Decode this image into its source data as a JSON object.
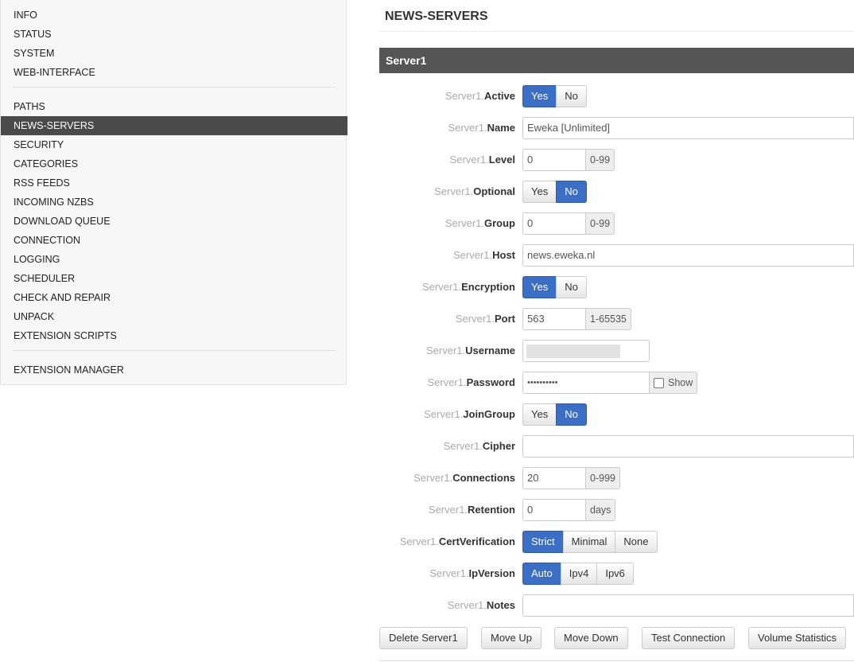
{
  "sidebar": {
    "groups": [
      [
        {
          "label": "INFO"
        },
        {
          "label": "STATUS"
        },
        {
          "label": "SYSTEM"
        },
        {
          "label": "WEB-INTERFACE"
        }
      ],
      [
        {
          "label": "PATHS"
        },
        {
          "label": "NEWS-SERVERS",
          "active": true
        },
        {
          "label": "SECURITY"
        },
        {
          "label": "CATEGORIES"
        },
        {
          "label": "RSS FEEDS"
        },
        {
          "label": "INCOMING NZBS"
        },
        {
          "label": "DOWNLOAD QUEUE"
        },
        {
          "label": "CONNECTION"
        },
        {
          "label": "LOGGING"
        },
        {
          "label": "SCHEDULER"
        },
        {
          "label": "CHECK AND REPAIR"
        },
        {
          "label": "UNPACK"
        },
        {
          "label": "EXTENSION SCRIPTS"
        }
      ],
      [
        {
          "label": "EXTENSION MANAGER"
        }
      ]
    ]
  },
  "main": {
    "title": "NEWS-SERVERS",
    "section": "Server1",
    "fields": [
      {
        "prefix": "Server1.",
        "name": "Active",
        "type": "switch",
        "options": [
          "Yes",
          "No"
        ],
        "selected": 0
      },
      {
        "prefix": "Server1.",
        "name": "Name",
        "type": "text",
        "value": "Eweka [Unlimited]"
      },
      {
        "prefix": "Server1.",
        "name": "Level",
        "type": "number",
        "value": "0",
        "addon": "0-99"
      },
      {
        "prefix": "Server1.",
        "name": "Optional",
        "type": "switch",
        "options": [
          "Yes",
          "No"
        ],
        "selected": 1
      },
      {
        "prefix": "Server1.",
        "name": "Group",
        "type": "number",
        "value": "0",
        "addon": "0-99"
      },
      {
        "prefix": "Server1.",
        "name": "Host",
        "type": "text",
        "value": "news.eweka.nl"
      },
      {
        "prefix": "Server1.",
        "name": "Encryption",
        "type": "switch",
        "options": [
          "Yes",
          "No"
        ],
        "selected": 0
      },
      {
        "prefix": "Server1.",
        "name": "Port",
        "type": "number",
        "value": "563",
        "addon": "1-65535"
      },
      {
        "prefix": "Server1.",
        "name": "Username",
        "type": "blurred"
      },
      {
        "prefix": "Server1.",
        "name": "Password",
        "type": "password",
        "value": "••••••••••",
        "addon": "Show"
      },
      {
        "prefix": "Server1.",
        "name": "JoinGroup",
        "type": "switch",
        "options": [
          "Yes",
          "No"
        ],
        "selected": 1
      },
      {
        "prefix": "Server1.",
        "name": "Cipher",
        "type": "text"
      },
      {
        "prefix": "Server1.",
        "name": "Connections",
        "type": "number",
        "value": "20",
        "addon": "0-999"
      },
      {
        "prefix": "Server1.",
        "name": "Retention",
        "type": "number",
        "value": "0",
        "addon": "days"
      },
      {
        "prefix": "Server1.",
        "name": "CertVerification",
        "type": "switch",
        "options": [
          "Strict",
          "Minimal",
          "None"
        ],
        "selected": 0
      },
      {
        "prefix": "Server1.",
        "name": "IpVersion",
        "type": "switch",
        "options": [
          "Auto",
          "Ipv4",
          "Ipv6"
        ],
        "selected": 0
      },
      {
        "prefix": "Server1.",
        "name": "Notes",
        "type": "text"
      }
    ],
    "buttons": [
      "Delete Server1",
      "Move Up",
      "Move Down",
      "Test Connection",
      "Volume Statistics"
    ]
  }
}
